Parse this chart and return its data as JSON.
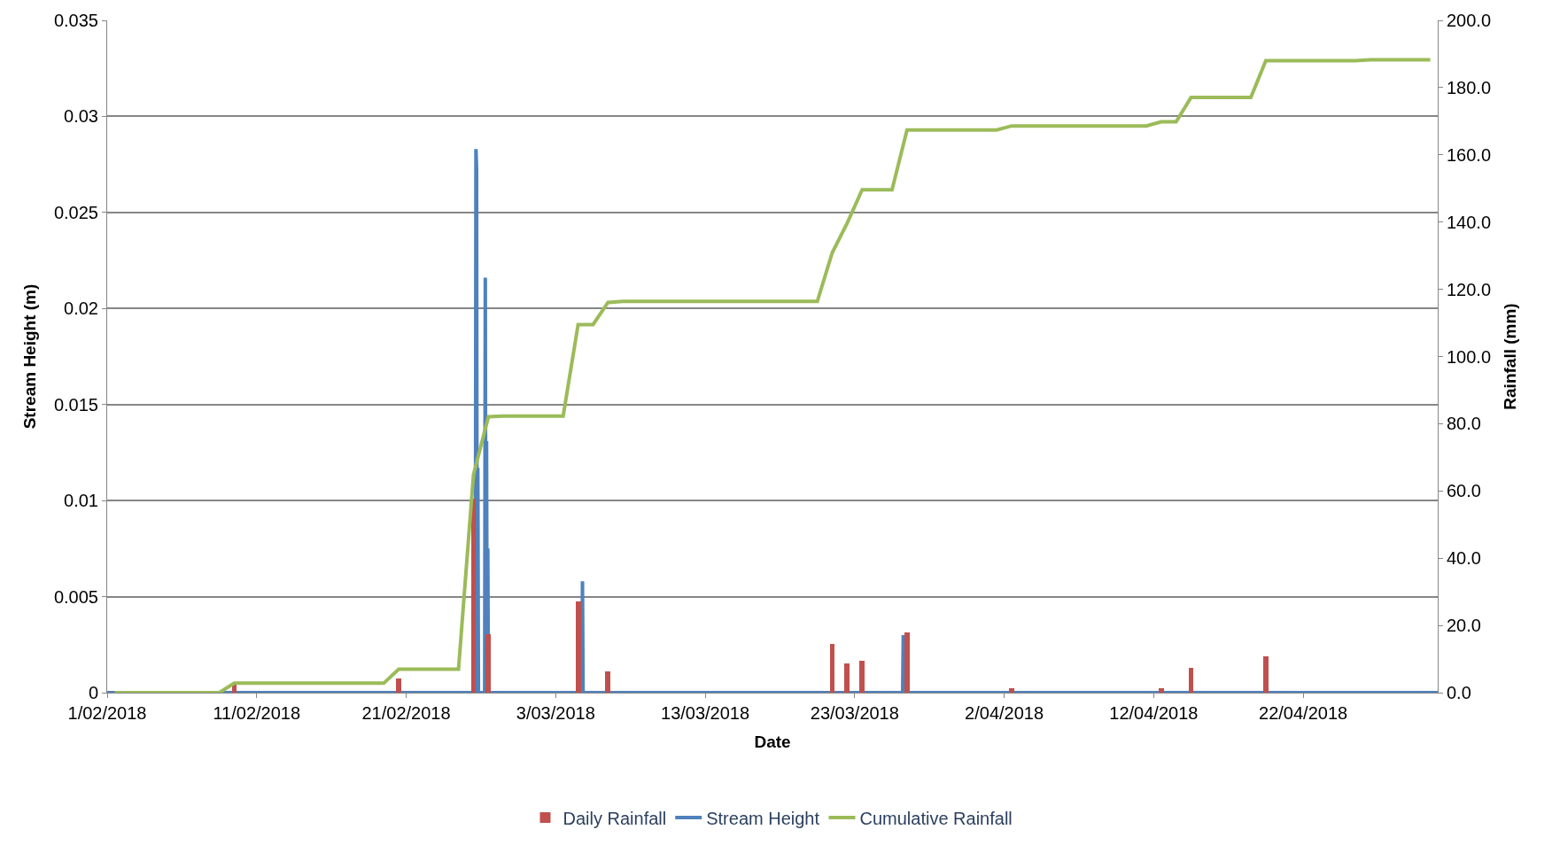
{
  "chart_data": {
    "type": "line",
    "xlabel": "Date",
    "ylabel": "Stream Height (m)",
    "y2label": "Rainfall (mm)",
    "xlim": [
      "2018-02-01",
      "2018-05-01"
    ],
    "xticks": [
      {
        "value": "2018-02-01",
        "label": "1/02/2018"
      },
      {
        "value": "2018-02-11",
        "label": "11/02/2018"
      },
      {
        "value": "2018-02-21",
        "label": "21/02/2018"
      },
      {
        "value": "2018-03-03",
        "label": "3/03/2018"
      },
      {
        "value": "2018-03-13",
        "label": "13/03/2018"
      },
      {
        "value": "2018-03-23",
        "label": "23/03/2018"
      },
      {
        "value": "2018-04-02",
        "label": "2/04/2018"
      },
      {
        "value": "2018-04-12",
        "label": "12/04/2018"
      },
      {
        "value": "2018-04-22",
        "label": "22/04/2018"
      }
    ],
    "ylim": [
      0,
      0.035
    ],
    "yticks": [
      0,
      0.005,
      0.01,
      0.015,
      0.02,
      0.025,
      0.03,
      0.035
    ],
    "y2lim": [
      0,
      200
    ],
    "y2ticks": [
      {
        "value": 0,
        "label": "0.0"
      },
      {
        "value": 20,
        "label": "20.0"
      },
      {
        "value": 40,
        "label": "40.0"
      },
      {
        "value": 60,
        "label": "60.0"
      },
      {
        "value": 80,
        "label": "80.0"
      },
      {
        "value": 100,
        "label": "100.0"
      },
      {
        "value": 120,
        "label": "120.0"
      },
      {
        "value": 140,
        "label": "140.0"
      },
      {
        "value": 160,
        "label": "160.0"
      },
      {
        "value": 180,
        "label": "180.0"
      },
      {
        "value": 200,
        "label": "200.0"
      }
    ],
    "grid": "y",
    "legend": "bottom",
    "series": [
      {
        "name": "Daily Rainfall",
        "type": "bar",
        "axis": "y2",
        "color": "#c0504d",
        "x": [
          "2018-02-09T12:00",
          "2018-02-20T12:00",
          "2018-02-25T12:00",
          "2018-02-26T12:00",
          "2018-03-04T12:00",
          "2018-03-06T12:00",
          "2018-03-21T12:00",
          "2018-03-22T12:00",
          "2018-03-23T12:00",
          "2018-03-26T12:00",
          "2018-04-02T12:00",
          "2018-04-12T12:00",
          "2018-04-14T12:00",
          "2018-04-19T12:00"
        ],
        "values": [
          2.8,
          4.2,
          57.8,
          17.3,
          27.2,
          6.4,
          14.5,
          8.7,
          9.4,
          17.8,
          1.2,
          1.2,
          7.3,
          10.9
        ]
      },
      {
        "name": "Stream Height",
        "color": "#4f81bd",
        "x": [
          "2018-02-01T00:00",
          "2018-02-25T15:00",
          "2018-02-25T16:00",
          "2018-02-25T17:00",
          "2018-02-25T18:00",
          "2018-02-25T19:00",
          "2018-02-25T20:00",
          "2018-02-26T06:00",
          "2018-02-26T07:00",
          "2018-02-26T08:00",
          "2018-02-26T09:00",
          "2018-02-26T10:00",
          "2018-02-26T11:00",
          "2018-02-26T12:00",
          "2018-03-04T18:00",
          "2018-03-04T19:00",
          "2018-03-04T20:00",
          "2018-03-26T05:00",
          "2018-03-26T06:00",
          "2018-03-26T07:00",
          "2018-05-01T00:00"
        ],
        "values": [
          0,
          0,
          0.0283,
          0.0273,
          0,
          0.0117,
          0,
          0,
          0.0216,
          0,
          0.0131,
          0,
          0.0075,
          0,
          0,
          0.0058,
          0,
          0,
          0.003,
          0,
          0
        ]
      },
      {
        "name": "Cumulative Rainfall",
        "axis": "y2",
        "color": "#9bbb59",
        "x": [
          "2018-02-01T12:00",
          "2018-02-08T12:00",
          "2018-02-09T12:00",
          "2018-02-19T12:00",
          "2018-02-20T12:00",
          "2018-02-24T12:00",
          "2018-02-25T12:00",
          "2018-02-26T12:00",
          "2018-02-27T12:00",
          "2018-03-03T12:00",
          "2018-03-04T12:00",
          "2018-03-05T12:00",
          "2018-03-06T12:00",
          "2018-03-07T12:00",
          "2018-03-20T12:00",
          "2018-03-21T12:00",
          "2018-03-22T12:00",
          "2018-03-23T12:00",
          "2018-03-25T12:00",
          "2018-03-26T12:00",
          "2018-04-01T12:00",
          "2018-04-02T12:00",
          "2018-04-11T12:00",
          "2018-04-12T12:00",
          "2018-04-13T12:00",
          "2018-04-14T12:00",
          "2018-04-18T12:00",
          "2018-04-19T12:00",
          "2018-04-25T12:00",
          "2018-04-26T12:00",
          "2018-04-30T12:00"
        ],
        "values": [
          0,
          0,
          2.8,
          2.8,
          7.0,
          7.0,
          64.8,
          82.1,
          82.3,
          82.3,
          109.5,
          109.5,
          116.1,
          116.4,
          116.4,
          130.9,
          139.7,
          149.6,
          149.6,
          167.4,
          167.4,
          168.6,
          168.6,
          169.8,
          169.8,
          177.1,
          177.1,
          188.0,
          188.0,
          188.3,
          188.3
        ]
      }
    ]
  }
}
